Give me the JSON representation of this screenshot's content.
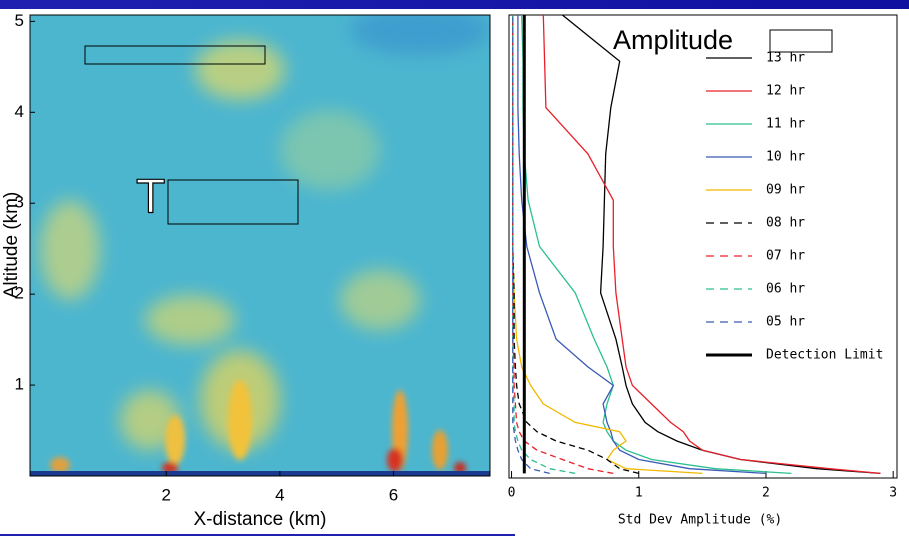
{
  "chart_data": [
    {
      "type": "heatmap",
      "x_label": "X-distance (km)",
      "y_label": "Altitude (km)",
      "annotation": "T",
      "xlim": [
        -0.4,
        7.7
      ],
      "ylim": [
        0,
        5.07
      ],
      "xticks": [
        2,
        4,
        6
      ],
      "yticks": [
        1,
        2,
        3,
        4,
        5
      ]
    },
    {
      "type": "line",
      "title": "Amplitude",
      "x_label": "Std Dev Amplitude (%)",
      "xlim": [
        -0.02,
        3.03
      ],
      "ylim": [
        0,
        5
      ],
      "xticks": [
        0,
        1,
        2,
        3
      ],
      "y": [
        0.05,
        0.1,
        0.2,
        0.3,
        0.4,
        0.5,
        0.6,
        0.8,
        1.0,
        1.2,
        1.5,
        2.0,
        2.5,
        3.0,
        3.5,
        4.0,
        4.5,
        5.0
      ],
      "series": [
        {
          "name": "13 hr",
          "color": "#000000",
          "dash": false,
          "values": [
            2.9,
            2.4,
            1.8,
            1.5,
            1.3,
            1.15,
            1.05,
            0.95,
            0.9,
            0.87,
            0.82,
            0.7,
            0.72,
            0.73,
            0.74,
            0.78,
            0.85,
            0.4
          ]
        },
        {
          "name": "12 hr",
          "color": "#e8202a",
          "dash": false,
          "values": [
            2.9,
            2.5,
            1.8,
            1.5,
            1.4,
            1.35,
            1.25,
            1.1,
            0.95,
            0.9,
            0.87,
            0.82,
            0.8,
            0.8,
            0.6,
            0.27,
            0.26,
            0.25
          ]
        },
        {
          "name": "11 hr",
          "color": "#2bbf8e",
          "dash": false,
          "values": [
            2.2,
            1.6,
            1.1,
            0.9,
            0.8,
            0.75,
            0.72,
            0.75,
            0.8,
            0.75,
            0.65,
            0.5,
            0.22,
            0.13,
            0.1,
            0.09,
            0.09,
            0.08
          ]
        },
        {
          "name": "10 hr",
          "color": "#3a5bb5",
          "dash": false,
          "values": [
            2.0,
            1.4,
            1.0,
            0.85,
            0.8,
            0.78,
            0.75,
            0.72,
            0.8,
            0.6,
            0.35,
            0.22,
            0.12,
            0.08,
            0.06,
            0.05,
            0.05,
            0.05
          ]
        },
        {
          "name": "09 hr",
          "color": "#f2b800",
          "dash": false,
          "values": [
            1.5,
            0.9,
            0.75,
            0.8,
            0.9,
            0.85,
            0.5,
            0.25,
            0.15,
            0.08,
            0.04,
            0.02,
            0.01,
            0.01,
            0.01,
            0.01,
            0.01,
            0.01
          ]
        },
        {
          "name": "08 hr",
          "color": "#000000",
          "dash": true,
          "values": [
            1.0,
            0.85,
            0.75,
            0.6,
            0.35,
            0.2,
            0.12,
            0.06,
            0.04,
            0.03,
            0.02,
            0.02,
            0.01,
            0.01,
            0.01,
            0.01,
            0.01,
            0.01
          ]
        },
        {
          "name": "07 hr",
          "color": "#e8202a",
          "dash": true,
          "values": [
            0.8,
            0.6,
            0.4,
            0.2,
            0.1,
            0.06,
            0.04,
            0.03,
            0.02,
            0.02,
            0.01,
            0.01,
            0.01,
            0.01,
            0.01,
            0.01,
            0.01,
            0.01
          ]
        },
        {
          "name": "06 hr",
          "color": "#2bbf8e",
          "dash": true,
          "values": [
            0.5,
            0.3,
            0.15,
            0.08,
            0.05,
            0.03,
            0.02,
            0.02,
            0.01,
            0.01,
            0.01,
            0.01,
            0.01,
            0.01,
            0.01,
            0.01,
            0.01,
            0.01
          ]
        },
        {
          "name": "05 hr",
          "color": "#3a5bb5",
          "dash": true,
          "values": [
            0.3,
            0.15,
            0.08,
            0.05,
            0.03,
            0.02,
            0.01,
            0.01,
            0.01,
            0.01,
            0.01,
            0.01,
            0.01,
            0.01,
            0.01,
            0.01,
            0.01,
            0.01
          ]
        },
        {
          "name": "Detection Limit",
          "color": "#000000",
          "dash": false,
          "width": 3,
          "values": [
            0.1,
            0.1,
            0.1,
            0.1,
            0.1,
            0.1,
            0.1,
            0.1,
            0.1,
            0.1,
            0.1,
            0.1,
            0.1,
            0.1,
            0.1,
            0.1,
            0.1,
            0.1
          ]
        }
      ]
    }
  ]
}
